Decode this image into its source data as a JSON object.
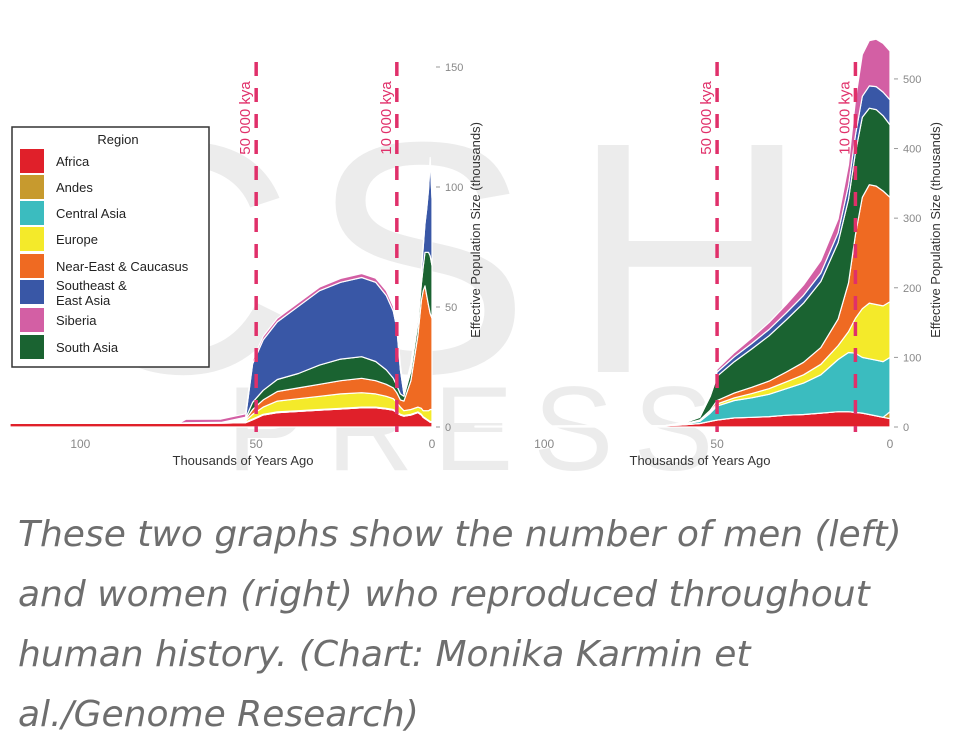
{
  "watermark": {
    "letters": [
      "C",
      "S",
      "H"
    ],
    "press": "PRESS",
    "color": "#ececec"
  },
  "colors": {
    "Africa": "#e0202a",
    "Andes": "#c79a2e",
    "Central Asia": "#3bbcbf",
    "Europe": "#f4ea2a",
    "Near-East & Caucasus": "#ef6a22",
    "Southeast & East Asia": "#3957a6",
    "Siberia": "#d35fa4",
    "South Asia": "#1a6331",
    "marker": "#e0306a"
  },
  "legend": {
    "title": "Region",
    "items": [
      {
        "lines": [
          "Africa"
        ],
        "key": "Africa"
      },
      {
        "lines": [
          "Andes"
        ],
        "key": "Andes"
      },
      {
        "lines": [
          "Central Asia"
        ],
        "key": "Central Asia"
      },
      {
        "lines": [
          "Europe"
        ],
        "key": "Europe"
      },
      {
        "lines": [
          "Near-East & Caucasus"
        ],
        "key": "Near-East & Caucasus"
      },
      {
        "lines": [
          "Southeast &",
          "East Asia"
        ],
        "key": "Southeast & East Asia"
      },
      {
        "lines": [
          "Siberia"
        ],
        "key": "Siberia"
      },
      {
        "lines": [
          "South Asia"
        ],
        "key": "South Asia"
      }
    ]
  },
  "chart_data": [
    {
      "type": "area",
      "subject": "men",
      "xlabel": "Thousands of Years Ago",
      "ylabel": "Effective Population Size (thousands)",
      "xlim": [
        120,
        0
      ],
      "ylim": [
        0,
        150
      ],
      "xticks": [
        100,
        50,
        0
      ],
      "yticks": [
        0,
        50,
        100,
        150
      ],
      "markers": [
        {
          "x": 50,
          "label": "50 000 kya"
        },
        {
          "x": 10,
          "label": "10 000 kya"
        }
      ],
      "x": [
        120,
        72,
        70,
        60,
        53,
        51,
        48,
        44,
        38,
        32,
        26,
        20,
        16,
        13,
        11,
        10,
        9,
        8,
        6,
        4,
        3,
        2.5,
        2,
        1.5,
        1,
        0.5,
        0
      ],
      "series": [
        {
          "region": "Africa",
          "values": [
            1.5,
            1.5,
            1.5,
            1.6,
            1.8,
            3.0,
            5.0,
            6.0,
            6.5,
            7.0,
            7.5,
            8.0,
            8.0,
            7.5,
            7.0,
            6.0,
            5.0,
            4.5,
            5.0,
            6.0,
            5.0,
            4.0,
            3.5,
            3.0,
            2.5,
            2.0,
            2.0
          ]
        },
        {
          "region": "Andes",
          "values": [
            0,
            0,
            0,
            0,
            0,
            0,
            0,
            0,
            0,
            0,
            0,
            0,
            0,
            0,
            0,
            0,
            0,
            0,
            0,
            0,
            0,
            0,
            0,
            0,
            0,
            0,
            0
          ]
        },
        {
          "region": "Central Asia",
          "values": [
            0,
            0,
            0.3,
            0.3,
            0.3,
            0.3,
            0.3,
            0.3,
            0.3,
            0.3,
            0.3,
            0.3,
            0.3,
            0.3,
            0.3,
            0.3,
            0.3,
            0.3,
            0.3,
            0.3,
            0.3,
            0.3,
            0.3,
            0.3,
            0.3,
            0.3,
            0.3
          ]
        },
        {
          "region": "Europe",
          "values": [
            0,
            0,
            0,
            0,
            0.5,
            2.0,
            3.0,
            4.5,
            5.0,
            5.5,
            6.0,
            6.0,
            5.5,
            5.0,
            4.5,
            4.0,
            3.0,
            2.0,
            2.0,
            2.0,
            2.5,
            2.5,
            3.0,
            3.5,
            4.0,
            5.0,
            5.0
          ]
        },
        {
          "region": "Near-East & Caucasus",
          "values": [
            0,
            0,
            0,
            0,
            0.5,
            2.0,
            3.0,
            4.0,
            4.5,
            5.0,
            5.5,
            6.0,
            5.5,
            5.0,
            4.5,
            4.0,
            3.0,
            4.0,
            12.0,
            30.0,
            45.0,
            50.0,
            52.0,
            48.0,
            44.0,
            40.0,
            38.0
          ]
        },
        {
          "region": "South Asia",
          "values": [
            0,
            0,
            0,
            0,
            0.5,
            3.0,
            4.0,
            5.0,
            6.0,
            8.0,
            9.0,
            9.0,
            8.0,
            6.0,
            4.0,
            3.0,
            2.5,
            2.0,
            4.0,
            5.0,
            7.0,
            10.0,
            14.0,
            18.0,
            22.0,
            24.0,
            22.0
          ]
        },
        {
          "region": "Southeast & East Asia",
          "values": [
            0,
            0,
            0,
            0,
            0.5,
            16.0,
            21.0,
            24.0,
            28.0,
            31.0,
            32.0,
            33.0,
            33.0,
            31.0,
            28.0,
            24.0,
            10.0,
            1.0,
            2.0,
            4.0,
            5.0,
            8.0,
            12.0,
            18.0,
            26.0,
            40.0,
            28.0
          ]
        },
        {
          "region": "Siberia",
          "values": [
            0,
            0,
            1.4,
            1.4,
            1.4,
            1.5,
            1.5,
            1.5,
            1.5,
            1.5,
            1.6,
            1.6,
            1.7,
            2.0,
            2.0,
            2.5,
            2.0,
            1.0,
            1.0,
            1.0,
            1.0,
            1.0,
            1.0,
            1.0,
            1.0,
            1.0,
            1.0
          ]
        }
      ]
    },
    {
      "type": "area",
      "subject": "women",
      "xlabel": "Thousands of Years Ago",
      "ylabel": "Effective Population Size (thousands)",
      "xlim": [
        120,
        0
      ],
      "ylim": [
        0,
        520
      ],
      "xticks": [
        100,
        50,
        0
      ],
      "yticks": [
        0,
        100,
        200,
        300,
        400,
        500
      ],
      "markers": [
        {
          "x": 50,
          "label": "50 000 kya"
        },
        {
          "x": 10,
          "label": "10 000 kya"
        }
      ],
      "x": [
        120,
        65,
        60,
        55,
        52,
        50,
        45,
        40,
        35,
        30,
        25,
        20,
        15,
        12,
        10,
        8,
        6,
        4,
        2,
        0
      ],
      "series": [
        {
          "region": "Africa",
          "values": [
            1,
            2,
            3,
            5,
            8,
            10,
            13,
            14,
            15,
            17,
            18,
            20,
            22,
            22,
            21,
            20,
            18,
            16,
            14,
            12
          ]
        },
        {
          "region": "Andes",
          "values": [
            0,
            0,
            0,
            0,
            0,
            0,
            0,
            0,
            0,
            0,
            0,
            0,
            0,
            0,
            0,
            0,
            0,
            0,
            0,
            10
          ]
        },
        {
          "region": "Central Asia",
          "values": [
            0,
            0,
            1,
            3,
            12,
            20,
            25,
            28,
            32,
            38,
            45,
            55,
            75,
            85,
            85,
            80,
            80,
            80,
            80,
            78
          ]
        },
        {
          "region": "Europe",
          "values": [
            0,
            0,
            0,
            1,
            2,
            3,
            4,
            6,
            8,
            10,
            12,
            15,
            20,
            30,
            50,
            70,
            80,
            80,
            80,
            80
          ]
        },
        {
          "region": "Near-East & Caucasus",
          "values": [
            0,
            0,
            0,
            1,
            2,
            5,
            7,
            9,
            11,
            14,
            18,
            24,
            38,
            70,
            120,
            160,
            170,
            170,
            165,
            150
          ]
        },
        {
          "region": "South Asia",
          "values": [
            0,
            0,
            1,
            4,
            20,
            35,
            45,
            55,
            65,
            75,
            85,
            95,
            110,
            120,
            118,
            115,
            110,
            110,
            108,
            104
          ]
        },
        {
          "region": "Southeast & East Asia",
          "values": [
            0,
            0,
            1,
            2,
            4,
            6,
            7,
            8,
            9,
            10,
            11,
            12,
            14,
            20,
            25,
            30,
            32,
            33,
            34,
            36
          ]
        },
        {
          "region": "Siberia",
          "values": [
            0,
            0,
            0,
            1,
            2,
            4,
            6,
            8,
            10,
            12,
            15,
            18,
            20,
            30,
            50,
            60,
            65,
            68,
            70,
            70
          ]
        }
      ]
    }
  ],
  "caption": "These two graphs show the number of men (left) and women (right) who reproduced throughout human history. (Chart: Monika Karmin et al./Genome Research)"
}
